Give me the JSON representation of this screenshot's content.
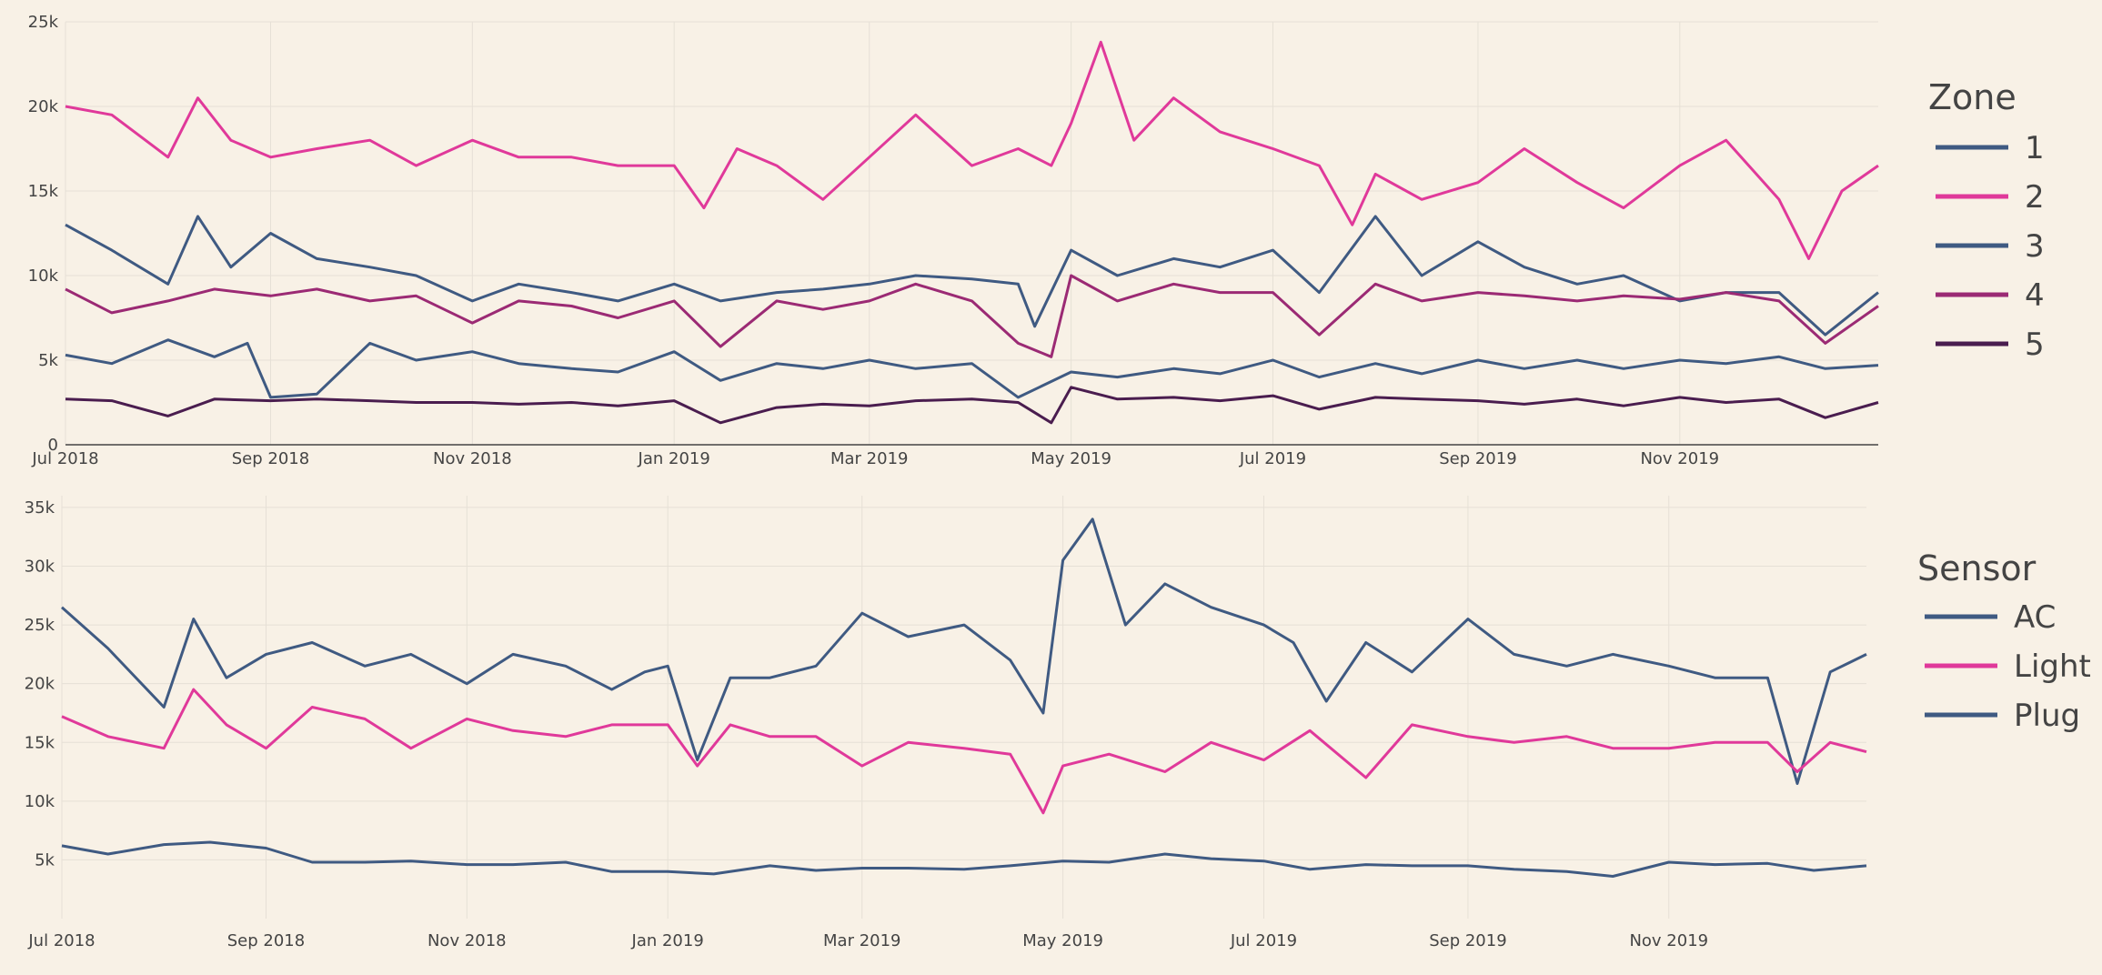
{
  "colors": {
    "background": "#f8f1e6",
    "grid": "#e6e0d6",
    "axis": "#444444"
  },
  "chart_data": [
    {
      "type": "line",
      "legend_title": "Zone",
      "legend_position": "right",
      "x_range": [
        "2018-07-01",
        "2019-12-31"
      ],
      "xticks": [
        "Jul 2018",
        "Sep 2018",
        "Nov 2018",
        "Jan 2019",
        "Mar 2019",
        "May 2019",
        "Jul 2019",
        "Sep 2019",
        "Nov 2019"
      ],
      "ylim": [
        0,
        25000
      ],
      "yticks": [
        0,
        5000,
        10000,
        15000,
        20000,
        25000
      ],
      "ytick_labels": [
        "0",
        "5k",
        "10k",
        "15k",
        "20k",
        "25k"
      ],
      "grid": true,
      "series": [
        {
          "name": "1",
          "color": "#3f5a82",
          "x": [
            "2018-07-01",
            "2018-07-15",
            "2018-08-01",
            "2018-08-10",
            "2018-08-20",
            "2018-09-01",
            "2018-09-15",
            "2018-10-01",
            "2018-10-15",
            "2018-11-01",
            "2018-11-15",
            "2018-12-01",
            "2018-12-15",
            "2019-01-01",
            "2019-01-15",
            "2019-02-01",
            "2019-02-15",
            "2019-03-01",
            "2019-03-15",
            "2019-04-01",
            "2019-04-15",
            "2019-04-20",
            "2019-05-01",
            "2019-05-15",
            "2019-06-01",
            "2019-06-15",
            "2019-07-01",
            "2019-07-15",
            "2019-08-01",
            "2019-08-15",
            "2019-09-01",
            "2019-09-15",
            "2019-10-01",
            "2019-10-15",
            "2019-11-01",
            "2019-11-15",
            "2019-12-01",
            "2019-12-15",
            "2019-12-31"
          ],
          "y": [
            13000,
            11500,
            9500,
            13500,
            10500,
            12500,
            11000,
            10500,
            10000,
            8500,
            9500,
            9000,
            8500,
            9500,
            8500,
            9000,
            9200,
            9500,
            10000,
            9800,
            9500,
            7000,
            11500,
            10000,
            11000,
            10500,
            11500,
            9000,
            13500,
            10000,
            12000,
            10500,
            9500,
            10000,
            8500,
            9000,
            9000,
            6500,
            9000
          ]
        },
        {
          "name": "2",
          "color": "#e0399a",
          "x": [
            "2018-07-01",
            "2018-07-15",
            "2018-08-01",
            "2018-08-10",
            "2018-08-20",
            "2018-09-01",
            "2018-09-15",
            "2018-10-01",
            "2018-10-15",
            "2018-11-01",
            "2018-11-15",
            "2018-12-01",
            "2018-12-15",
            "2019-01-01",
            "2019-01-10",
            "2019-01-20",
            "2019-02-01",
            "2019-02-15",
            "2019-03-01",
            "2019-03-15",
            "2019-04-01",
            "2019-04-15",
            "2019-04-25",
            "2019-05-01",
            "2019-05-10",
            "2019-05-20",
            "2019-06-01",
            "2019-06-15",
            "2019-07-01",
            "2019-07-15",
            "2019-07-25",
            "2019-08-01",
            "2019-08-15",
            "2019-09-01",
            "2019-09-15",
            "2019-10-01",
            "2019-10-15",
            "2019-11-01",
            "2019-11-15",
            "2019-12-01",
            "2019-12-10",
            "2019-12-20",
            "2019-12-31"
          ],
          "y": [
            20000,
            19500,
            17000,
            20500,
            18000,
            17000,
            17500,
            18000,
            16500,
            18000,
            17000,
            17000,
            16500,
            16500,
            14000,
            17500,
            16500,
            14500,
            17000,
            19500,
            16500,
            17500,
            16500,
            19000,
            23800,
            18000,
            20500,
            18500,
            17500,
            16500,
            13000,
            16000,
            14500,
            15500,
            17500,
            15500,
            14000,
            16500,
            18000,
            14500,
            11000,
            15000,
            16500
          ]
        },
        {
          "name": "3",
          "color": "#3f5a82",
          "x": [
            "2018-07-01",
            "2018-07-15",
            "2018-08-01",
            "2018-08-15",
            "2018-08-25",
            "2018-09-01",
            "2018-09-15",
            "2018-10-01",
            "2018-10-15",
            "2018-11-01",
            "2018-11-15",
            "2018-12-01",
            "2018-12-15",
            "2019-01-01",
            "2019-01-15",
            "2019-02-01",
            "2019-02-15",
            "2019-03-01",
            "2019-03-15",
            "2019-04-01",
            "2019-04-15",
            "2019-05-01",
            "2019-05-15",
            "2019-06-01",
            "2019-06-15",
            "2019-07-01",
            "2019-07-15",
            "2019-08-01",
            "2019-08-15",
            "2019-09-01",
            "2019-09-15",
            "2019-10-01",
            "2019-10-15",
            "2019-11-01",
            "2019-11-15",
            "2019-12-01",
            "2019-12-15",
            "2019-12-31"
          ],
          "y": [
            5300,
            4800,
            6200,
            5200,
            6000,
            2800,
            3000,
            6000,
            5000,
            5500,
            4800,
            4500,
            4300,
            5500,
            3800,
            4800,
            4500,
            5000,
            4500,
            4800,
            2800,
            4300,
            4000,
            4500,
            4200,
            5000,
            4000,
            4800,
            4200,
            5000,
            4500,
            5000,
            4500,
            5000,
            4800,
            5200,
            4500,
            4700
          ]
        },
        {
          "name": "4",
          "color": "#9b2a74",
          "x": [
            "2018-07-01",
            "2018-07-15",
            "2018-08-01",
            "2018-08-15",
            "2018-09-01",
            "2018-09-15",
            "2018-10-01",
            "2018-10-15",
            "2018-11-01",
            "2018-11-15",
            "2018-12-01",
            "2018-12-15",
            "2019-01-01",
            "2019-01-15",
            "2019-02-01",
            "2019-02-15",
            "2019-03-01",
            "2019-03-15",
            "2019-04-01",
            "2019-04-15",
            "2019-04-25",
            "2019-05-01",
            "2019-05-15",
            "2019-06-01",
            "2019-06-15",
            "2019-07-01",
            "2019-07-15",
            "2019-08-01",
            "2019-08-15",
            "2019-09-01",
            "2019-09-15",
            "2019-10-01",
            "2019-10-15",
            "2019-11-01",
            "2019-11-15",
            "2019-12-01",
            "2019-12-15",
            "2019-12-31"
          ],
          "y": [
            9200,
            7800,
            8500,
            9200,
            8800,
            9200,
            8500,
            8800,
            7200,
            8500,
            8200,
            7500,
            8500,
            5800,
            8500,
            8000,
            8500,
            9500,
            8500,
            6000,
            5200,
            10000,
            8500,
            9500,
            9000,
            9000,
            6500,
            9500,
            8500,
            9000,
            8800,
            8500,
            8800,
            8600,
            9000,
            8500,
            6000,
            8200
          ]
        },
        {
          "name": "5",
          "color": "#4a1d4f",
          "x": [
            "2018-07-01",
            "2018-07-15",
            "2018-08-01",
            "2018-08-15",
            "2018-09-01",
            "2018-09-15",
            "2018-10-01",
            "2018-10-15",
            "2018-11-01",
            "2018-11-15",
            "2018-12-01",
            "2018-12-15",
            "2019-01-01",
            "2019-01-15",
            "2019-02-01",
            "2019-02-15",
            "2019-03-01",
            "2019-03-15",
            "2019-04-01",
            "2019-04-15",
            "2019-04-25",
            "2019-05-01",
            "2019-05-15",
            "2019-06-01",
            "2019-06-15",
            "2019-07-01",
            "2019-07-15",
            "2019-08-01",
            "2019-08-15",
            "2019-09-01",
            "2019-09-15",
            "2019-10-01",
            "2019-10-15",
            "2019-11-01",
            "2019-11-15",
            "2019-12-01",
            "2019-12-15",
            "2019-12-31"
          ],
          "y": [
            2700,
            2600,
            1700,
            2700,
            2600,
            2700,
            2600,
            2500,
            2500,
            2400,
            2500,
            2300,
            2600,
            1300,
            2200,
            2400,
            2300,
            2600,
            2700,
            2500,
            1300,
            3400,
            2700,
            2800,
            2600,
            2900,
            2100,
            2800,
            2700,
            2600,
            2400,
            2700,
            2300,
            2800,
            2500,
            2700,
            1600,
            2500
          ]
        }
      ]
    },
    {
      "type": "line",
      "legend_title": "Sensor",
      "legend_position": "right",
      "x_range": [
        "2018-07-01",
        "2019-12-31"
      ],
      "xticks": [
        "Jul 2018",
        "Sep 2018",
        "Nov 2018",
        "Jan 2019",
        "Mar 2019",
        "May 2019",
        "Jul 2019",
        "Sep 2019",
        "Nov 2019"
      ],
      "ylim": [
        0,
        36000
      ],
      "yticks": [
        5000,
        10000,
        15000,
        20000,
        25000,
        30000,
        35000
      ],
      "ytick_labels": [
        "5k",
        "10k",
        "15k",
        "20k",
        "25k",
        "30k",
        "35k"
      ],
      "grid": true,
      "series": [
        {
          "name": "AC",
          "color": "#3f5a82",
          "x": [
            "2018-07-01",
            "2018-07-15",
            "2018-08-01",
            "2018-08-10",
            "2018-08-20",
            "2018-09-01",
            "2018-09-15",
            "2018-10-01",
            "2018-10-15",
            "2018-11-01",
            "2018-11-15",
            "2018-12-01",
            "2018-12-15",
            "2018-12-25",
            "2019-01-01",
            "2019-01-10",
            "2019-01-20",
            "2019-02-01",
            "2019-02-15",
            "2019-03-01",
            "2019-03-15",
            "2019-04-01",
            "2019-04-15",
            "2019-04-25",
            "2019-05-01",
            "2019-05-10",
            "2019-05-20",
            "2019-06-01",
            "2019-06-15",
            "2019-07-01",
            "2019-07-10",
            "2019-07-20",
            "2019-08-01",
            "2019-08-15",
            "2019-09-01",
            "2019-09-15",
            "2019-10-01",
            "2019-10-15",
            "2019-11-01",
            "2019-11-15",
            "2019-12-01",
            "2019-12-10",
            "2019-12-20",
            "2019-12-31"
          ],
          "y": [
            26500,
            23000,
            18000,
            25500,
            20500,
            22500,
            23500,
            21500,
            22500,
            20000,
            22500,
            21500,
            19500,
            21000,
            21500,
            13500,
            20500,
            20500,
            21500,
            26000,
            24000,
            25000,
            22000,
            17500,
            30500,
            34000,
            25000,
            28500,
            26500,
            25000,
            23500,
            18500,
            23500,
            21000,
            25500,
            22500,
            21500,
            22500,
            21500,
            20500,
            20500,
            11500,
            21000,
            22500
          ]
        },
        {
          "name": "Light",
          "color": "#e0399a",
          "x": [
            "2018-07-01",
            "2018-07-15",
            "2018-08-01",
            "2018-08-10",
            "2018-08-20",
            "2018-09-01",
            "2018-09-15",
            "2018-10-01",
            "2018-10-15",
            "2018-11-01",
            "2018-11-15",
            "2018-12-01",
            "2018-12-15",
            "2019-01-01",
            "2019-01-10",
            "2019-01-20",
            "2019-02-01",
            "2019-02-15",
            "2019-03-01",
            "2019-03-15",
            "2019-04-01",
            "2019-04-15",
            "2019-04-25",
            "2019-05-01",
            "2019-05-15",
            "2019-06-01",
            "2019-06-15",
            "2019-07-01",
            "2019-07-15",
            "2019-08-01",
            "2019-08-15",
            "2019-09-01",
            "2019-09-15",
            "2019-10-01",
            "2019-10-15",
            "2019-11-01",
            "2019-11-15",
            "2019-12-01",
            "2019-12-10",
            "2019-12-20",
            "2019-12-31"
          ],
          "y": [
            17200,
            15500,
            14500,
            19500,
            16500,
            14500,
            18000,
            17000,
            14500,
            17000,
            16000,
            15500,
            16500,
            16500,
            13000,
            16500,
            15500,
            15500,
            13000,
            15000,
            14500,
            14000,
            9000,
            13000,
            14000,
            12500,
            15000,
            13500,
            16000,
            12000,
            16500,
            15500,
            15000,
            15500,
            14500,
            14500,
            15000,
            15000,
            12500,
            15000,
            14200
          ]
        },
        {
          "name": "Plug",
          "color": "#3f5a82",
          "x": [
            "2018-07-01",
            "2018-07-15",
            "2018-08-01",
            "2018-08-15",
            "2018-09-01",
            "2018-09-15",
            "2018-10-01",
            "2018-10-15",
            "2018-11-01",
            "2018-11-15",
            "2018-12-01",
            "2018-12-15",
            "2019-01-01",
            "2019-01-15",
            "2019-02-01",
            "2019-02-15",
            "2019-03-01",
            "2019-03-15",
            "2019-04-01",
            "2019-04-15",
            "2019-05-01",
            "2019-05-15",
            "2019-06-01",
            "2019-06-15",
            "2019-07-01",
            "2019-07-15",
            "2019-08-01",
            "2019-08-15",
            "2019-09-01",
            "2019-09-15",
            "2019-10-01",
            "2019-10-15",
            "2019-11-01",
            "2019-11-15",
            "2019-12-01",
            "2019-12-15",
            "2019-12-31"
          ],
          "y": [
            6200,
            5500,
            6300,
            6500,
            6000,
            4800,
            4800,
            4900,
            4600,
            4600,
            4800,
            4000,
            4000,
            3800,
            4500,
            4100,
            4300,
            4300,
            4200,
            4500,
            4900,
            4800,
            5500,
            5100,
            4900,
            4200,
            4600,
            4500,
            4500,
            4200,
            4000,
            3600,
            4800,
            4600,
            4700,
            4100,
            4500
          ]
        }
      ]
    }
  ]
}
